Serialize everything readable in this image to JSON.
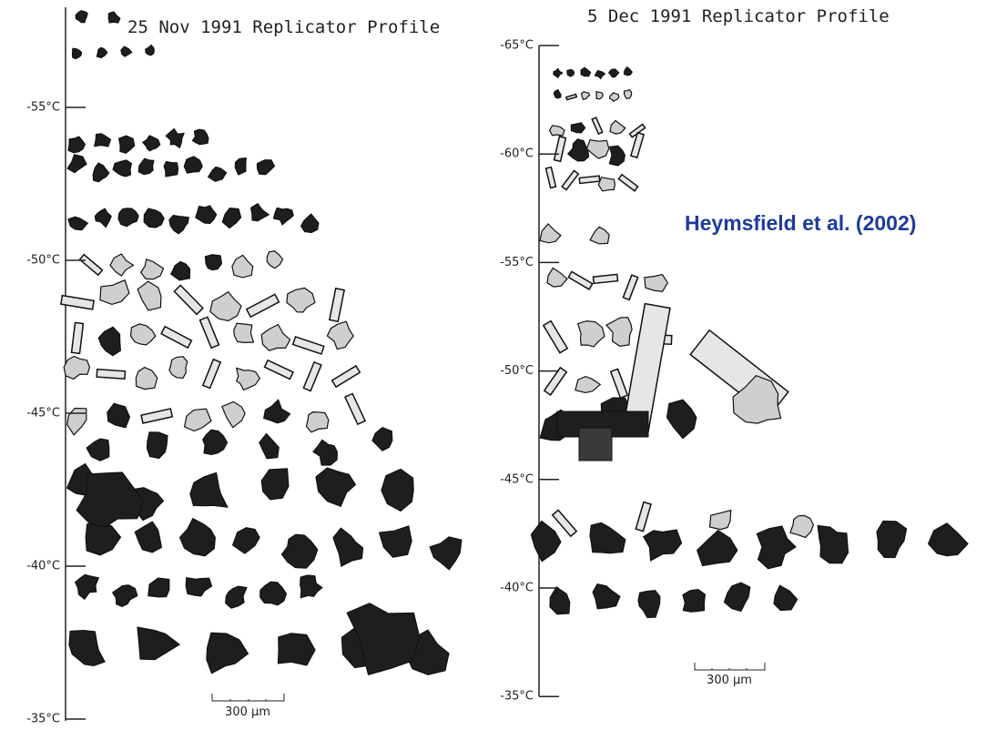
{
  "panels": [
    {
      "title": "25 Nov 1991 Replicator Profile",
      "ticks": [
        "-55°C",
        "-50°C",
        "-45°C",
        "-40°C",
        "-35°C"
      ],
      "scale_bar": "300 μm"
    },
    {
      "title": "5 Dec 1991 Replicator Profile",
      "ticks": [
        "-65°C",
        "-60°C",
        "-55°C",
        "-50°C",
        "-45°C",
        "-40°C",
        "-35°C"
      ],
      "scale_bar": "300 μm"
    }
  ],
  "citation": "Heymsfield et al. (2002)"
}
